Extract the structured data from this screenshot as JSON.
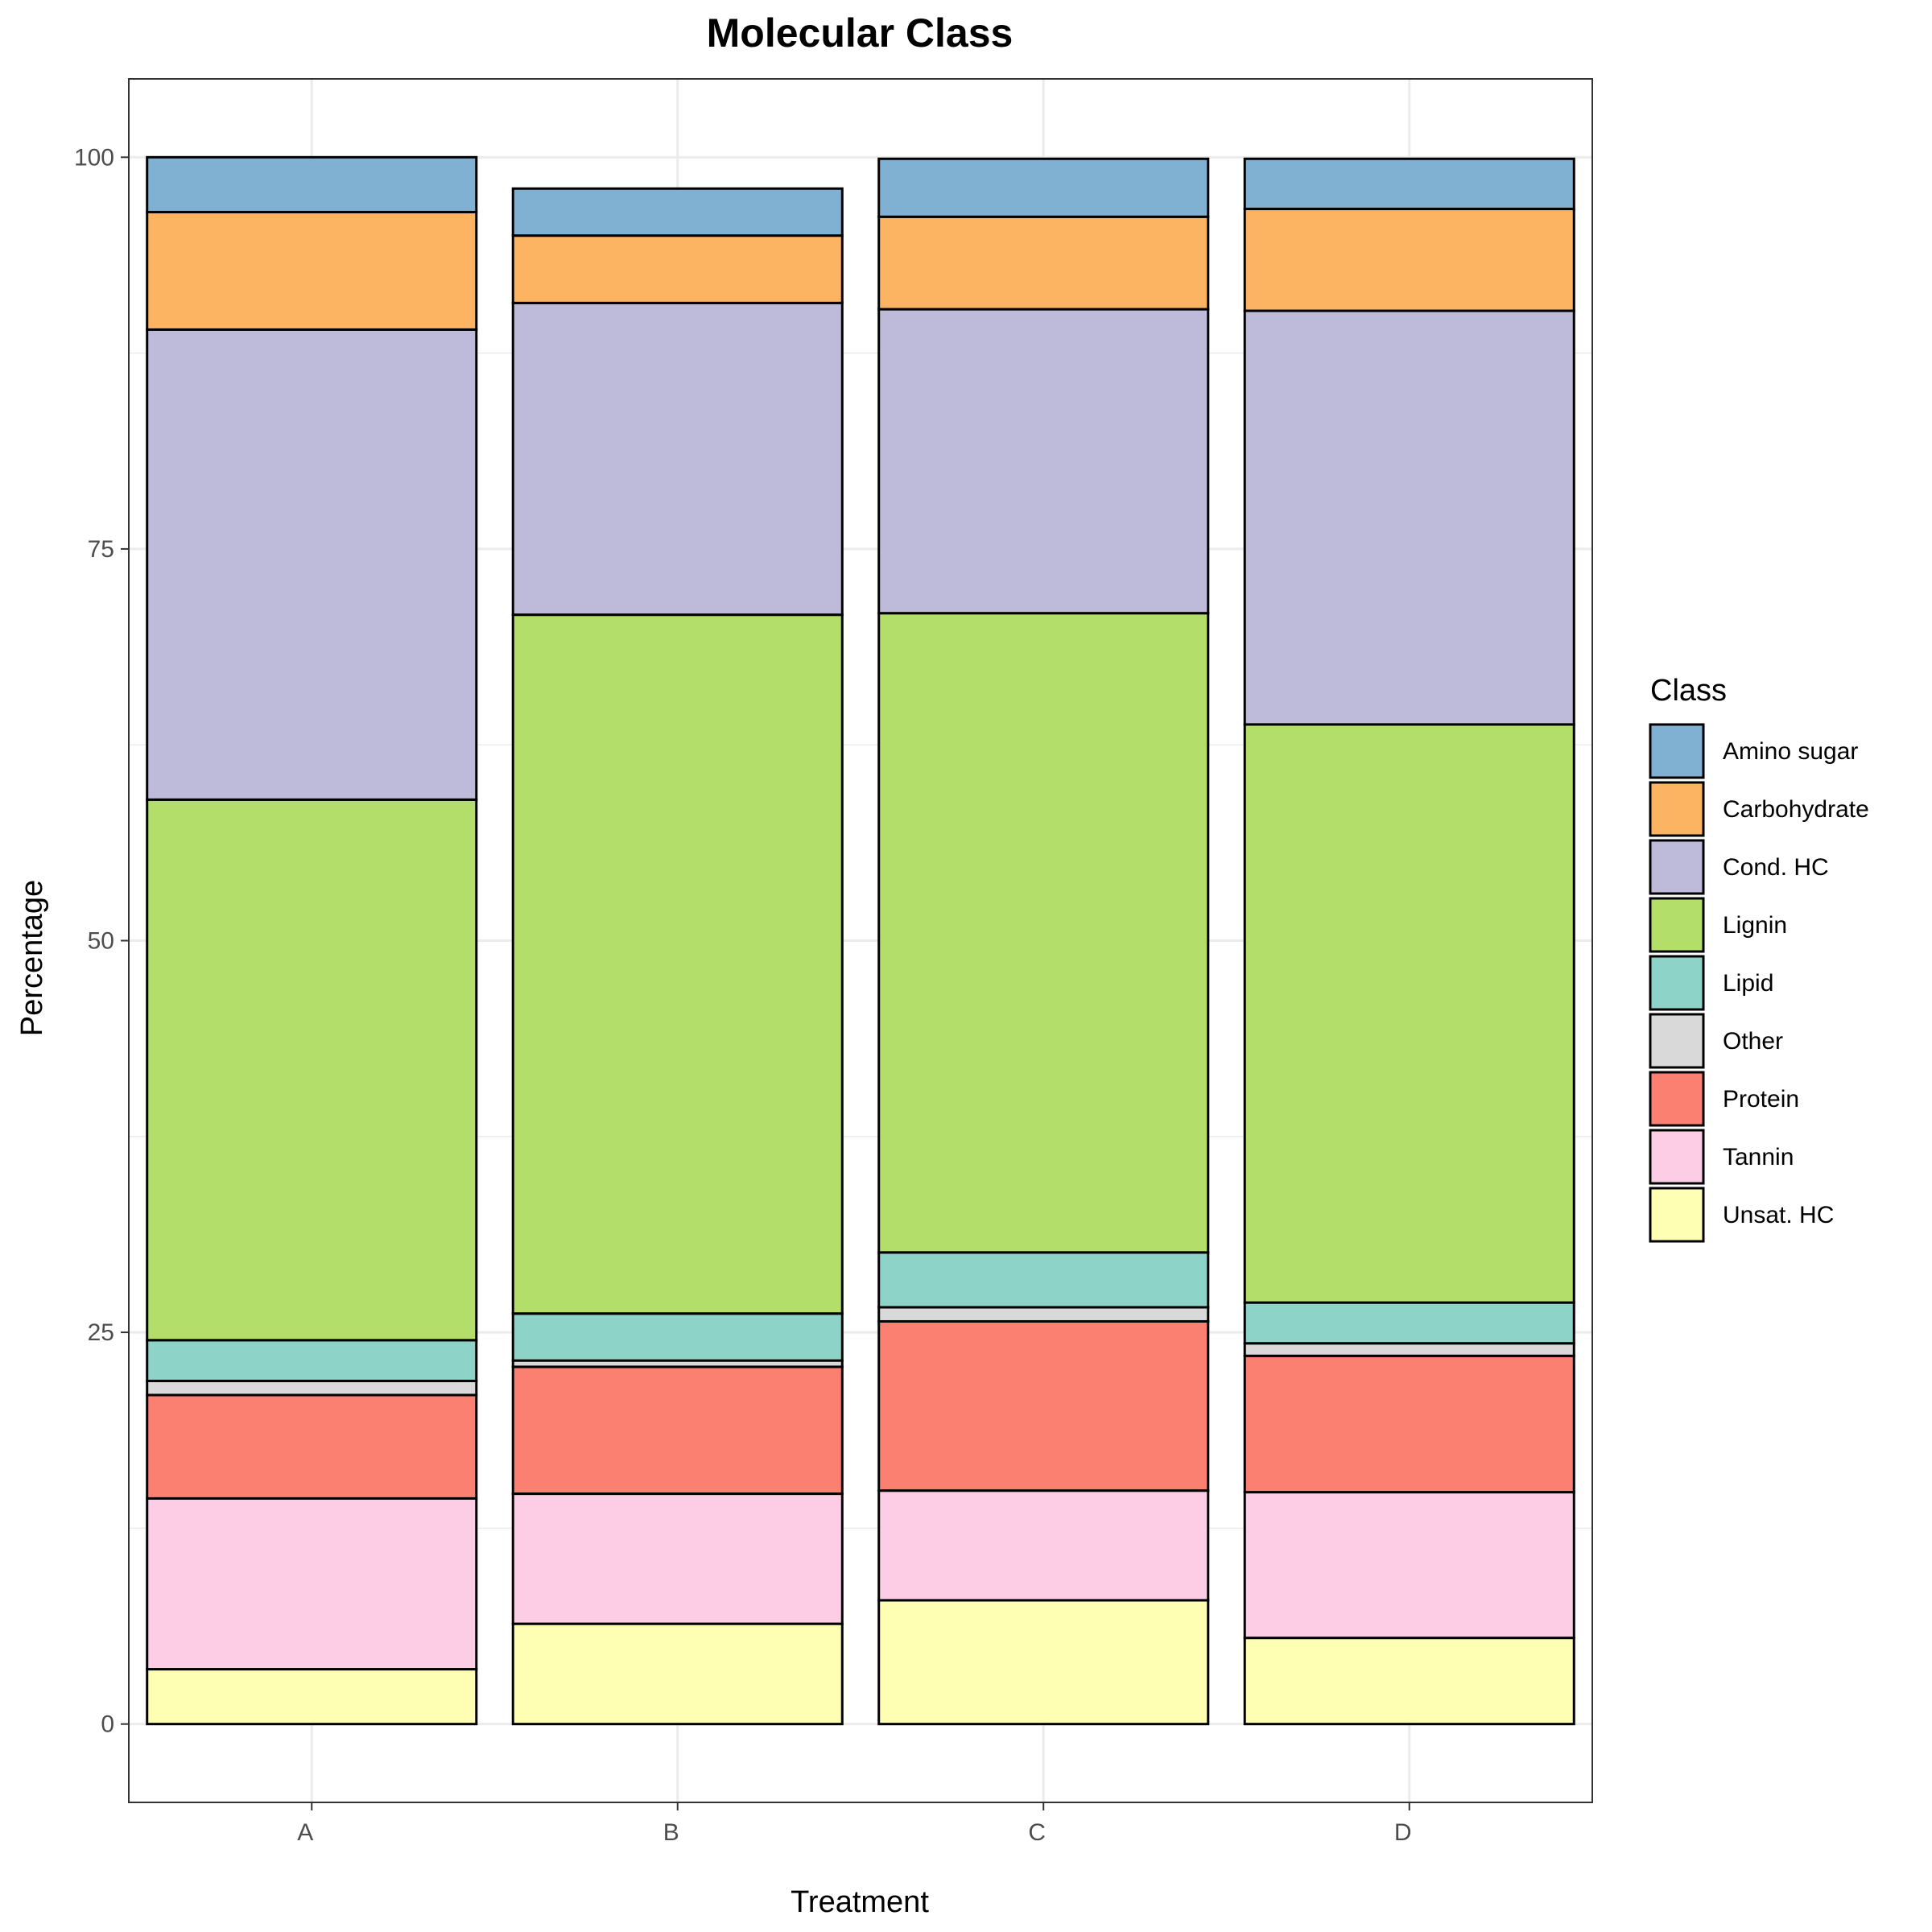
{
  "chart_data": {
    "type": "bar",
    "stacked": true,
    "title": "Molecular Class",
    "xlabel": "Treatment",
    "ylabel": "Percentage",
    "categories": [
      "A",
      "B",
      "C",
      "D"
    ],
    "ylim": [
      -5,
      105
    ],
    "yticks": [
      0,
      25,
      50,
      75,
      100
    ],
    "grid": true,
    "legend_title": "Class",
    "legend_position": "right",
    "stack_order_bottom_to_top": [
      "Unsat. HC",
      "Tannin",
      "Protein",
      "Other",
      "Lipid",
      "Lignin",
      "Cond. HC",
      "Carbohydrate",
      "Amino sugar"
    ],
    "series": [
      {
        "name": "Amino sugar",
        "color": "#80b1d3",
        "values": [
          3.5,
          3.0,
          3.7,
          3.2
        ]
      },
      {
        "name": "Carbohydrate",
        "color": "#fdb462",
        "values": [
          7.5,
          4.3,
          5.9,
          6.5
        ]
      },
      {
        "name": "Cond. HC",
        "color": "#bebada",
        "values": [
          30.0,
          19.9,
          19.4,
          26.4
        ]
      },
      {
        "name": "Lignin",
        "color": "#b3de69",
        "values": [
          34.5,
          44.6,
          40.8,
          36.9
        ]
      },
      {
        "name": "Lipid",
        "color": "#8dd3c7",
        "values": [
          2.6,
          3.0,
          3.5,
          2.6
        ]
      },
      {
        "name": "Other",
        "color": "#d9d9d9",
        "values": [
          0.9,
          0.4,
          0.9,
          0.8
        ]
      },
      {
        "name": "Protein",
        "color": "#fb8072",
        "values": [
          6.6,
          8.1,
          10.8,
          8.7
        ]
      },
      {
        "name": "Tannin",
        "color": "#fccde5",
        "values": [
          10.9,
          8.3,
          7.0,
          9.3
        ]
      },
      {
        "name": "Unsat. HC",
        "color": "#ffffb3",
        "values": [
          3.5,
          6.4,
          7.9,
          5.5
        ]
      }
    ]
  }
}
